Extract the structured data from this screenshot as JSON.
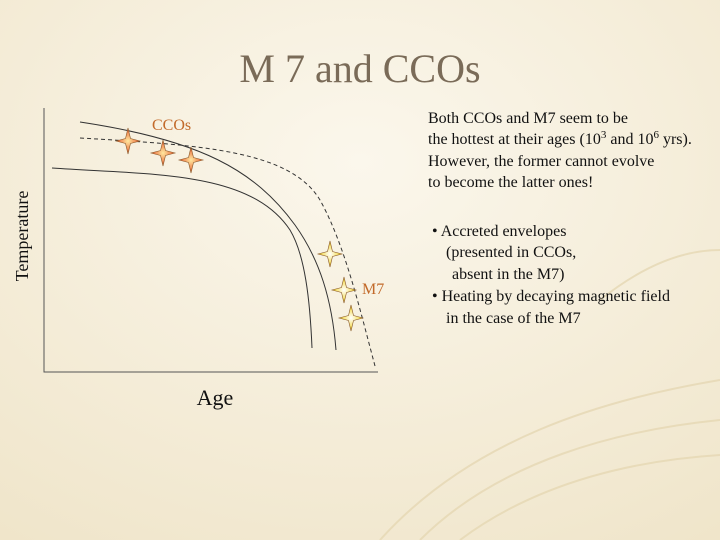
{
  "title": "M 7 and CCOs",
  "diagram": {
    "y_label": "Temperature",
    "x_label": "Age",
    "ccos_label": "CCOs",
    "m7_label": "M7"
  },
  "note": {
    "line1": "Both CCOs and M7 seem to be",
    "line2": {
      "before": "the hottest at their ages (10",
      "exp1": "3",
      "mid": " and 10",
      "exp2": "6",
      "after": " yrs)."
    },
    "line3": "However, the former cannot evolve",
    "line4": "to become the latter ones!"
  },
  "bullets": [
    {
      "lines": [
        "• Accreted envelopes",
        "(presented in CCOs,",
        "absent in the M7)"
      ]
    },
    {
      "lines": [
        "• Heating by decaying magnetic field",
        "in the case of the M7"
      ]
    }
  ]
}
